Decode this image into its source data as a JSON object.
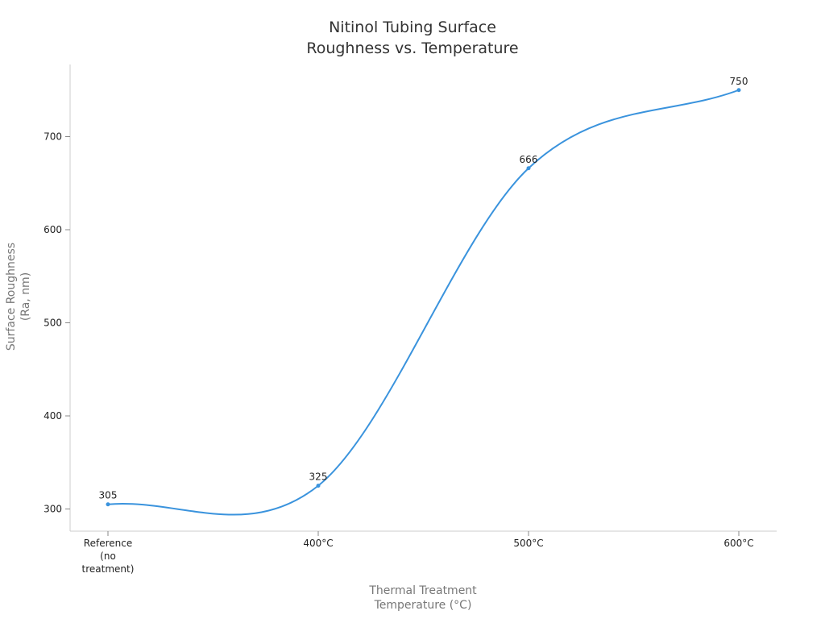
{
  "chart_data": {
    "type": "line",
    "title_lines": [
      "Nitinol Tubing Surface",
      "Roughness vs. Temperature"
    ],
    "xlabel_lines": [
      "Thermal Treatment",
      "Temperature (°C)"
    ],
    "ylabel_lines": [
      "Surface Roughness",
      "(Ra, nm)"
    ],
    "categories": [
      [
        "Reference",
        "(no",
        "treatment)"
      ],
      [
        "400°C"
      ],
      [
        "500°C"
      ],
      [
        "600°C"
      ]
    ],
    "values": [
      305,
      325,
      666,
      750
    ],
    "data_labels": [
      "305",
      "325",
      "666",
      "750"
    ],
    "y_ticks": [
      300,
      400,
      500,
      600,
      700
    ],
    "y_tick_labels": [
      "300",
      "400",
      "500",
      "600",
      "700"
    ],
    "ylim": [
      280,
      780
    ],
    "grid": false,
    "legend": "none",
    "line_style": "smooth",
    "colors": {
      "series": "#3a93dd"
    }
  }
}
